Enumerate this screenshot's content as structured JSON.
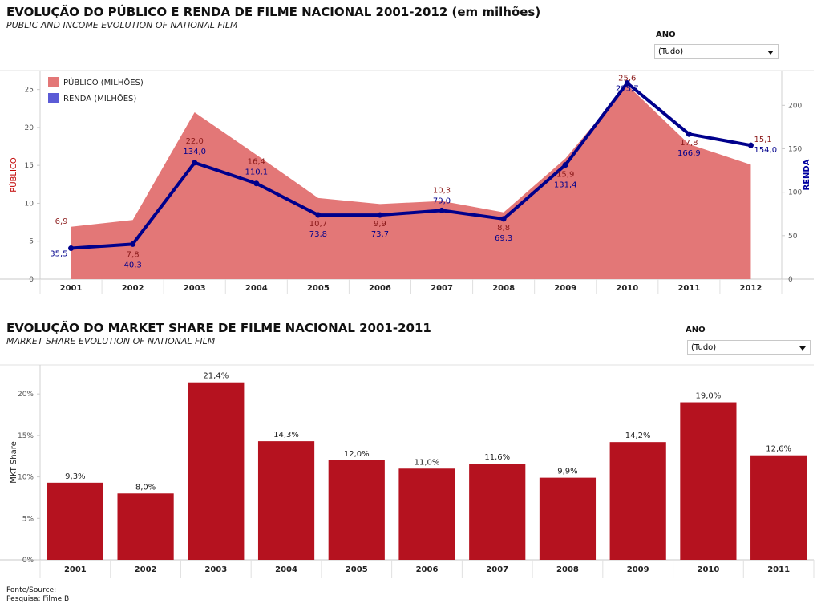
{
  "chart1_header": {
    "title": "EVOLUÇÃO DO PÚBLICO E RENDA DE FILME NACIONAL 2001-2012 (em milhões)",
    "subtitle": "PUBLIC AND INCOME EVOLUTION OF NATIONAL FILM",
    "filter_label": "ANO",
    "filter_value": "(Tudo)"
  },
  "chart2_header": {
    "title": "EVOLUÇÃO DO MARKET SHARE DE FILME NACIONAL 2001-2011",
    "subtitle": "MARKET SHARE EVOLUTION OF NATIONAL FILM",
    "filter_label": "ANO",
    "filter_value": "(Tudo)"
  },
  "footer": {
    "source_label": "Fonte/Source:",
    "source_value": "Pesquisa: Filme B"
  },
  "colors": {
    "publico": "#e37777",
    "renda": "#00008c",
    "publico_label": "#8b1a1a",
    "bar": "#b5121f"
  },
  "chart_data": [
    {
      "type": "area",
      "title": "EVOLUÇÃO DO PÚBLICO E RENDA DE FILME NACIONAL 2001-2012 (em milhões)",
      "x": [
        "2001",
        "2002",
        "2003",
        "2004",
        "2005",
        "2006",
        "2007",
        "2008",
        "2009",
        "2010",
        "2011",
        "2012"
      ],
      "ylabel_left": "PÚBLICO",
      "ylabel_right": "RENDA",
      "ylim_left": [
        0,
        27.5
      ],
      "yticks_left": [
        0,
        5,
        10,
        15,
        20,
        25
      ],
      "ylim_right": [
        0,
        240
      ],
      "yticks_right": [
        0,
        50,
        100,
        150,
        200
      ],
      "legend_placement": "top-left",
      "series": [
        {
          "name": "PÚBLICO (MILHÕES)",
          "type": "area",
          "axis": "left",
          "values": [
            6.9,
            7.8,
            22.0,
            16.4,
            10.7,
            9.9,
            10.3,
            8.8,
            15.9,
            25.6,
            17.8,
            15.1
          ],
          "labels": [
            "6,9",
            "7,8",
            "22,0",
            "16,4",
            "10,7",
            "9,9",
            "10,3",
            "8,8",
            "15,9",
            "25,6",
            "17,8",
            "15,1"
          ]
        },
        {
          "name": "RENDA (MILHÕES)",
          "type": "line",
          "axis": "right",
          "values": [
            35.5,
            40.3,
            134.0,
            110.1,
            73.8,
            73.7,
            79.0,
            69.3,
            131.4,
            225.7,
            166.9,
            154.0
          ],
          "labels": [
            "35,5",
            "40,3",
            "134,0",
            "110,1",
            "73,8",
            "73,7",
            "79,0",
            "69,3",
            "131,4",
            "225,7",
            "166,9",
            "154,0"
          ]
        }
      ]
    },
    {
      "type": "bar",
      "title": "EVOLUÇÃO DO MARKET SHARE DE FILME NACIONAL 2001-2011",
      "categories": [
        "2001",
        "2002",
        "2003",
        "2004",
        "2005",
        "2006",
        "2007",
        "2008",
        "2009",
        "2010",
        "2011"
      ],
      "values": [
        9.3,
        8.0,
        21.4,
        14.3,
        12.0,
        11.0,
        11.6,
        9.9,
        14.2,
        19.0,
        12.6
      ],
      "labels": [
        "9,3%",
        "8,0%",
        "21,4%",
        "14,3%",
        "12,0%",
        "11,0%",
        "11,6%",
        "9,9%",
        "14,2%",
        "19,0%",
        "12,6%"
      ],
      "ylabel": "MKT Share",
      "ylim": [
        0,
        23.5
      ],
      "yticks": [
        0,
        5,
        10,
        15,
        20
      ],
      "ytick_labels": [
        "0%",
        "5%",
        "10%",
        "15%",
        "20%"
      ]
    }
  ]
}
